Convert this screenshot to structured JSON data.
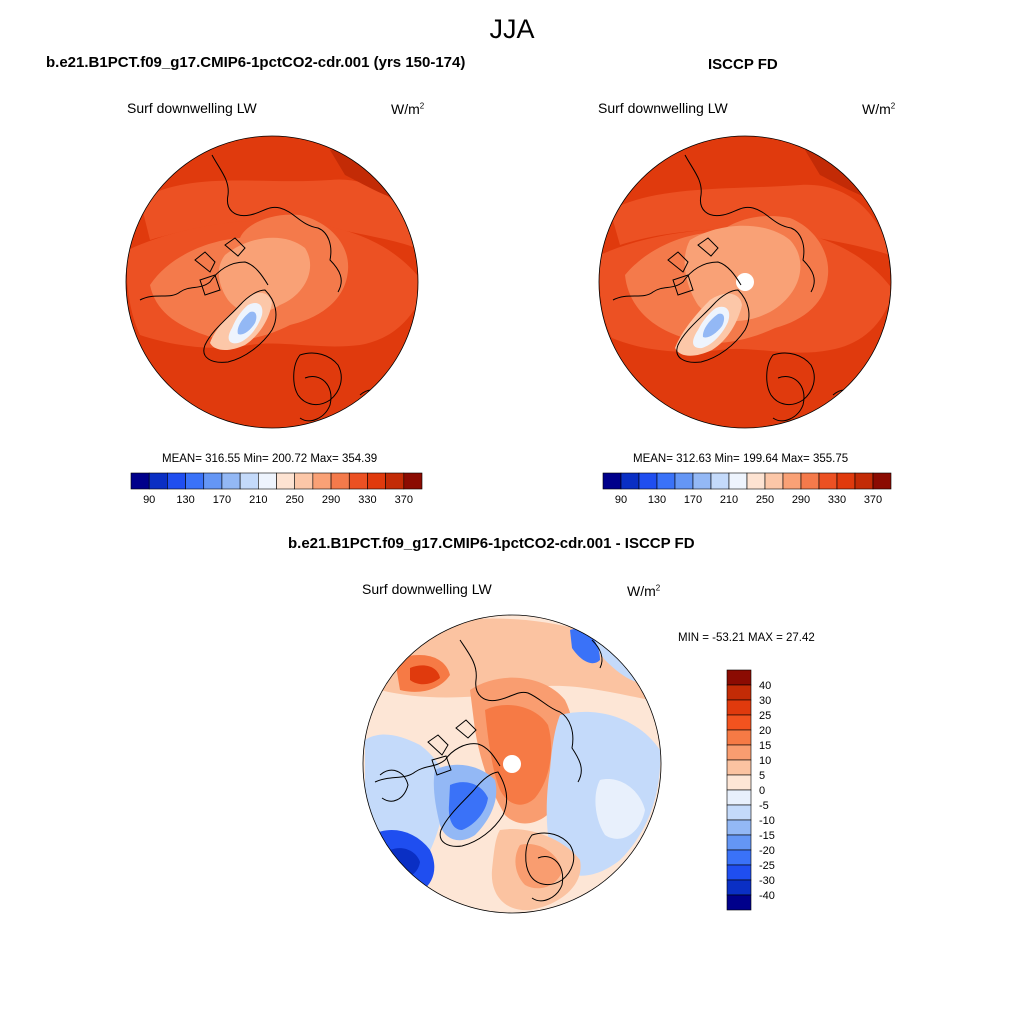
{
  "main_title": "JJA",
  "panels": [
    {
      "title": "b.e21.B1PCT.f09_g17.CMIP6-1pctCO2-cdr.001 (yrs 150-174)",
      "variable": "Surf downwelling LW",
      "units": "W/m",
      "units_sup": "2",
      "stats": "MEAN= 316.55  Min= 200.72  Max= 354.39"
    },
    {
      "title": "ISCCP FD",
      "variable": "Surf downwelling LW",
      "units": "W/m",
      "units_sup": "2",
      "stats": "MEAN= 312.63  Min= 199.64  Max= 355.75"
    },
    {
      "title": "b.e21.B1PCT.f09_g17.CMIP6-1pctCO2-cdr.001 - ISCCP FD",
      "variable": "Surf downwelling LW",
      "units": "W/m",
      "units_sup": "2",
      "stats": "MIN = -53.21 MAX =  27.42"
    }
  ],
  "chart_data": [
    {
      "type": "heatmap",
      "projection": "north-polar-stereographic",
      "title": "b.e21.B1PCT.f09_g17.CMIP6-1pctCO2-cdr.001 (yrs 150-174)",
      "variable": "Surf downwelling LW",
      "units": "W/m2",
      "mean": 316.55,
      "min": 200.72,
      "max": 354.39,
      "colorbar_levels": [
        70,
        90,
        110,
        130,
        150,
        170,
        190,
        210,
        230,
        250,
        270,
        290,
        310,
        330,
        350,
        370
      ],
      "colorbar_tick_labels": [
        "90",
        "130",
        "170",
        "210",
        "250",
        "290",
        "330",
        "370"
      ],
      "colorbar_colors": [
        "#00008b",
        "#0a2fc4",
        "#1f4ef0",
        "#3a72f8",
        "#6496f5",
        "#93b8f5",
        "#c4dafa",
        "#eef4fd",
        "#fde3d2",
        "#fcc7a8",
        "#f9a176",
        "#f47a4b",
        "#ec5123",
        "#e03a0d",
        "#c32b06",
        "#8b0b02"
      ]
    },
    {
      "type": "heatmap",
      "projection": "north-polar-stereographic",
      "title": "ISCCP FD",
      "variable": "Surf downwelling LW",
      "units": "W/m2",
      "mean": 312.63,
      "min": 199.64,
      "max": 355.75,
      "colorbar_levels": [
        70,
        90,
        110,
        130,
        150,
        170,
        190,
        210,
        230,
        250,
        270,
        290,
        310,
        330,
        350,
        370
      ],
      "colorbar_tick_labels": [
        "90",
        "130",
        "170",
        "210",
        "250",
        "290",
        "330",
        "370"
      ],
      "colorbar_colors": [
        "#00008b",
        "#0a2fc4",
        "#1f4ef0",
        "#3a72f8",
        "#6496f5",
        "#93b8f5",
        "#c4dafa",
        "#eef4fd",
        "#fde3d2",
        "#fcc7a8",
        "#f9a176",
        "#f47a4b",
        "#ec5123",
        "#e03a0d",
        "#c32b06",
        "#8b0b02"
      ]
    },
    {
      "type": "heatmap",
      "projection": "north-polar-stereographic",
      "title": "b.e21.B1PCT.f09_g17.CMIP6-1pctCO2-cdr.001 - ISCCP FD",
      "variable": "Surf downwelling LW",
      "units": "W/m2",
      "min": -53.21,
      "max": 27.42,
      "colorbar_levels": [
        40,
        30,
        25,
        20,
        15,
        10,
        5,
        0,
        -5,
        -10,
        -15,
        -20,
        -25,
        -30,
        -40
      ],
      "colorbar_tick_labels": [
        "40",
        "30",
        "25",
        "20",
        "15",
        "10",
        "5",
        "0",
        "-5",
        "-10",
        "-15",
        "-20",
        "-25",
        "-30",
        "-40"
      ],
      "colorbar_colors": [
        "#8b0b02",
        "#c32b06",
        "#e03a0d",
        "#f2531f",
        "#f67a45",
        "#f99d70",
        "#fbc3a1",
        "#fde6d6",
        "#e8f0fc",
        "#c4dafa",
        "#93b8f5",
        "#6496f5",
        "#3a72f8",
        "#1f4ef0",
        "#0a2fc4",
        "#00008b"
      ]
    }
  ]
}
